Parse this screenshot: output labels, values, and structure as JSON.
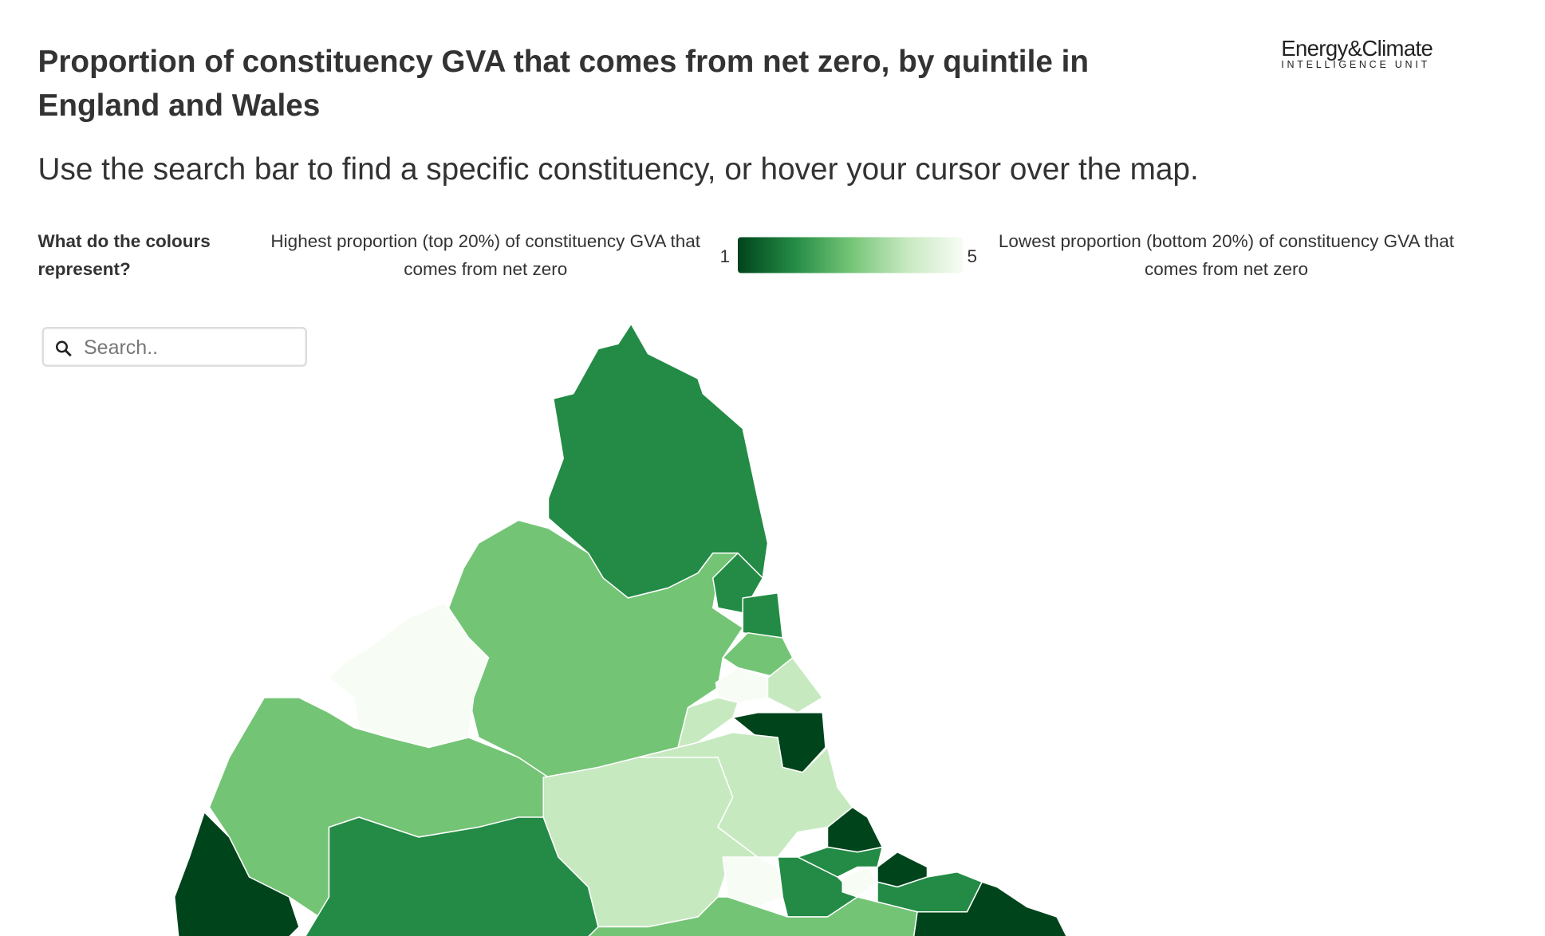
{
  "header": {
    "title": "Proportion of constituency GVA that comes from net zero, by quintile in England and Wales",
    "subtitle": "Use the search bar to find a specific constituency, or hover your cursor over the map.",
    "logo": {
      "name": "Energy&Climate",
      "unit": "INTELLIGENCE UNIT"
    }
  },
  "legend": {
    "question": "What do the colours represent?",
    "high_label": "Highest proportion (top 20%) of constituency GVA that comes from net zero",
    "low_label": "Lowest proportion (bottom 20%) of constituency GVA that comes from net zero",
    "min": 1,
    "max": 5,
    "colors": [
      "#00441b",
      "#238b45",
      "#74c476",
      "#c7e9c0",
      "#f7fcf5"
    ]
  },
  "search": {
    "placeholder": "Search.."
  },
  "map": {
    "quintiles": [
      2,
      3,
      5,
      3,
      1,
      2,
      4,
      2,
      2,
      3,
      5,
      4,
      4,
      1,
      4,
      1,
      2,
      5,
      2,
      5,
      1,
      2,
      1,
      3
    ]
  }
}
